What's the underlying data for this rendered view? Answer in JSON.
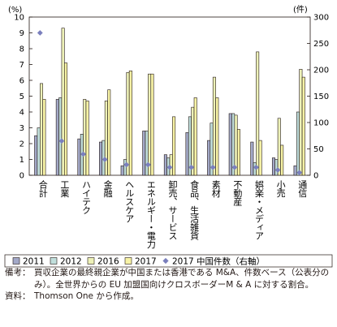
{
  "chart_data": {
    "type": "bar",
    "y_left_label": "(%)",
    "y_right_label": "(件)",
    "y_left_range": [
      0,
      10
    ],
    "y_right_range": [
      0,
      300
    ],
    "y_left_ticks": [
      "0",
      "1",
      "2",
      "3",
      "4",
      "5",
      "6",
      "7",
      "8",
      "9",
      "10"
    ],
    "y_right_ticks": [
      "0",
      "50",
      "100",
      "150",
      "200",
      "250",
      "300"
    ],
    "categories": [
      "合計",
      "工業",
      "ハイテク",
      "金融",
      "ヘルスケア",
      "エネルギー・電力",
      "卸売、サービス",
      "食品、生活雑貨",
      "素材",
      "不動産",
      "娯楽・メディア",
      "小売",
      "通信"
    ],
    "series": [
      {
        "name": "2011",
        "axis": "left",
        "color": "#a3a9c8",
        "values": [
          2.5,
          4.8,
          2.3,
          2.1,
          0.6,
          2.8,
          1.3,
          2.7,
          2.2,
          3.9,
          2.1,
          1.1,
          0.6
        ]
      },
      {
        "name": "2012",
        "axis": "left",
        "color": "#c1dfdc",
        "values": [
          3.0,
          4.9,
          2.6,
          2.2,
          1.0,
          2.8,
          1.1,
          3.7,
          3.3,
          3.9,
          0.8,
          1.0,
          4.0
        ]
      },
      {
        "name": "2016",
        "axis": "left",
        "color": "#edf1b8",
        "values": [
          5.8,
          9.3,
          4.8,
          4.7,
          6.5,
          6.4,
          1.3,
          4.3,
          6.2,
          3.8,
          7.8,
          3.6,
          6.7
        ]
      },
      {
        "name": "2017",
        "axis": "left",
        "color": "#f7f3a6",
        "values": [
          4.8,
          7.1,
          4.7,
          5.4,
          6.6,
          6.4,
          3.7,
          4.9,
          4.9,
          2.9,
          2.2,
          1.9,
          6.2
        ]
      },
      {
        "name": "2017 中国件数（右軸）",
        "axis": "right",
        "type": "scatter",
        "color": "#7a7fbd",
        "values": [
          270,
          65,
          40,
          30,
          20,
          20,
          15,
          15,
          15,
          15,
          15,
          10,
          5
        ]
      }
    ]
  },
  "notes": {
    "remark_label": "備考：",
    "remark_text": "買収企業の最終親企業が中国または香港である M&A、件数ベース（公表分のみ）。全世界からの EU 加盟国向けクロスボーダーM & A に対する割合。",
    "source_label": "資料：",
    "source_text": "Thomson One から作成。"
  }
}
